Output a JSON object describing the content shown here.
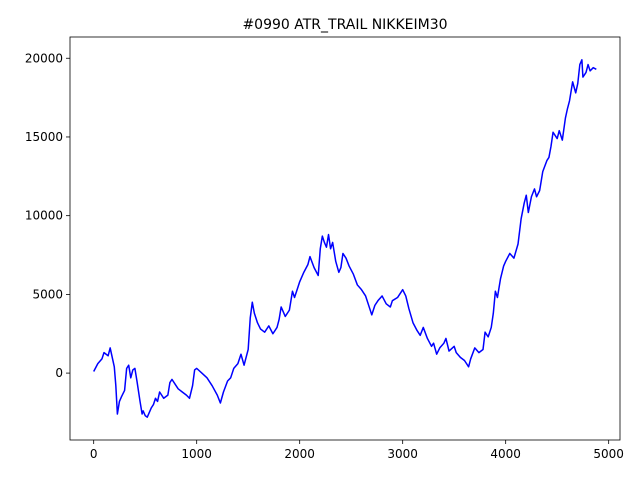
{
  "chart_data": {
    "type": "line",
    "title": "#0990 ATR_TRAIL NIKKEIM30",
    "xlabel": "",
    "ylabel": "",
    "xlim": [
      -230,
      5110
    ],
    "ylim": [
      -4250,
      21350
    ],
    "x_ticks": [
      0,
      1000,
      2000,
      3000,
      4000,
      5000
    ],
    "y_ticks": [
      0,
      5000,
      10000,
      15000,
      20000
    ],
    "grid": false,
    "legend": "none",
    "series": [
      {
        "color": "#0000ff",
        "x": [
          0,
          40,
          80,
          100,
          140,
          160,
          200,
          215,
          230,
          250,
          270,
          300,
          320,
          340,
          360,
          380,
          400,
          420,
          450,
          470,
          480,
          500,
          520,
          540,
          560,
          580,
          600,
          620,
          640,
          680,
          720,
          740,
          760,
          800,
          820,
          860,
          900,
          930,
          960,
          980,
          1000,
          1050,
          1100,
          1150,
          1200,
          1230,
          1260,
          1300,
          1330,
          1360,
          1400,
          1430,
          1460,
          1500,
          1520,
          1540,
          1560,
          1590,
          1620,
          1660,
          1700,
          1740,
          1780,
          1800,
          1820,
          1860,
          1900,
          1930,
          1950,
          1980,
          2000,
          2040,
          2080,
          2100,
          2140,
          2180,
          2200,
          2220,
          2240,
          2260,
          2280,
          2300,
          2320,
          2350,
          2380,
          2400,
          2420,
          2450,
          2480,
          2520,
          2560,
          2600,
          2640,
          2680,
          2700,
          2730,
          2760,
          2800,
          2840,
          2880,
          2900,
          2950,
          3000,
          3030,
          3060,
          3100,
          3140,
          3170,
          3200,
          3240,
          3280,
          3300,
          3330,
          3360,
          3400,
          3420,
          3450,
          3500,
          3520,
          3560,
          3600,
          3620,
          3640,
          3660,
          3700,
          3740,
          3780,
          3800,
          3830,
          3860,
          3880,
          3900,
          3920,
          3950,
          3980,
          4000,
          4040,
          4080,
          4120,
          4150,
          4180,
          4200,
          4220,
          4250,
          4280,
          4300,
          4330,
          4360,
          4400,
          4420,
          4440,
          4460,
          4500,
          4520,
          4550,
          4580,
          4600,
          4620,
          4650,
          4680,
          4700,
          4720,
          4740,
          4750,
          4780,
          4800,
          4820,
          4850,
          4880
        ],
        "y": [
          100,
          600,
          900,
          1300,
          1100,
          1600,
          400,
          -800,
          -2600,
          -1800,
          -1500,
          -1100,
          300,
          500,
          -300,
          200,
          300,
          -500,
          -1800,
          -2600,
          -2400,
          -2700,
          -2800,
          -2500,
          -2200,
          -2000,
          -1600,
          -1800,
          -1200,
          -1600,
          -1400,
          -600,
          -400,
          -800,
          -1000,
          -1200,
          -1400,
          -1600,
          -800,
          200,
          300,
          0,
          -300,
          -800,
          -1400,
          -1900,
          -1200,
          -500,
          -300,
          300,
          600,
          1200,
          500,
          1500,
          3500,
          4500,
          3800,
          3200,
          2800,
          2600,
          3000,
          2500,
          2900,
          3400,
          4200,
          3600,
          4000,
          5200,
          4800,
          5400,
          5800,
          6400,
          6900,
          7400,
          6700,
          6200,
          7900,
          8700,
          8300,
          8000,
          8800,
          7900,
          8300,
          7100,
          6400,
          6700,
          7600,
          7300,
          6800,
          6300,
          5600,
          5300,
          4900,
          4100,
          3700,
          4300,
          4600,
          4900,
          4400,
          4200,
          4600,
          4800,
          5300,
          4900,
          4100,
          3200,
          2700,
          2400,
          2900,
          2200,
          1700,
          1900,
          1200,
          1600,
          1900,
          2200,
          1400,
          1700,
          1300,
          1000,
          800,
          600,
          400,
          900,
          1600,
          1300,
          1500,
          2600,
          2300,
          2900,
          3800,
          5200,
          4800,
          6000,
          6800,
          7100,
          7600,
          7300,
          8200,
          9800,
          10800,
          11300,
          10200,
          11200,
          11700,
          11200,
          11600,
          12800,
          13500,
          13700,
          14400,
          15300,
          14900,
          15400,
          14800,
          16200,
          16800,
          17300,
          18500,
          17800,
          18400,
          19600,
          19900,
          18800,
          19100,
          19600,
          19200,
          19400,
          19300
        ]
      }
    ]
  }
}
